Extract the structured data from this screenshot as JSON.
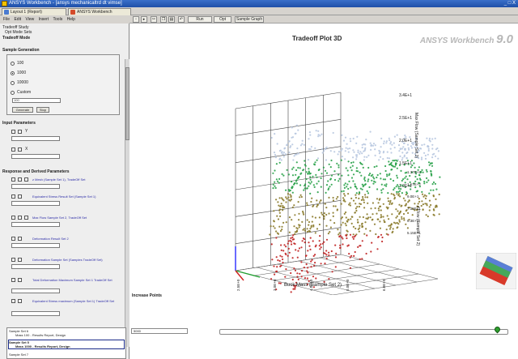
{
  "window": {
    "title": "ANSYS Workbench - [ansys mechanicaltrd dt vimse]",
    "controls": "_ □ X"
  },
  "tabs": [
    {
      "label": "Layout 1 (Report)",
      "color": "#4a7bd0"
    },
    {
      "label": "ANSYS Workbench",
      "color": "#d44b2a"
    }
  ],
  "menu": [
    "File",
    "Edit",
    "View",
    "Insert",
    "Tools",
    "Help"
  ],
  "toolbar": {
    "items": [
      "Run",
      "Opt",
      "Sample Graph"
    ]
  },
  "left": {
    "breadcrumb": [
      "Tradeoff Study",
      "Opt Mode Sets"
    ],
    "heading": "Tradeoff Mode",
    "sample_generation": {
      "title": "Sample Generation",
      "options": [
        "100",
        "1000",
        "10000",
        "Custom"
      ],
      "selected": 1,
      "custom_value": "100",
      "buttons": [
        "Generate",
        "Stop"
      ]
    },
    "input_params": {
      "title": "Input Parameters",
      "items": [
        {
          "label": "Y"
        },
        {
          "label": "X"
        }
      ]
    },
    "response": {
      "title": "Response and Derived Parameters",
      "items": [
        "z Mesh (Sample Set 1), TradeOff Set",
        "Equivalent Stress Result Set (Sample Set 1)",
        "Max Flow Sample Set 2, TradeOff Set",
        "Deformation Result Set 2",
        "Deformation Sample Set (Samples TradeOff Set)",
        "Total Deformation Maximum Sample Set 1 TradeOff Set",
        "Equivalent Stress maximum (Sample Set 1) TradeOff Set"
      ]
    }
  },
  "results": [
    {
      "name": "Sample Set 6",
      "detail": "Mass 100 - Results Report, Design"
    },
    {
      "name": "Sample Set 5",
      "detail": "Mass 1000 - Results Report, Design"
    },
    {
      "name": "Sample Set 7",
      "detail": ""
    }
  ],
  "plot": {
    "title": "Tradeoff Plot 3D",
    "brand": "ANSYS Workbench",
    "version": "9.0",
    "increase_points_label": "Increase Points",
    "points_value": "5000",
    "slider_fraction": 0.97,
    "x_axis_label": "Buck Mass (Sample Set 2)",
    "y_axis_label": "z Flow (Sample Set 2)",
    "z_axis_label": "Max Flow (Sample Set 2)"
  },
  "chart_data": {
    "type": "scatter",
    "title": "Tradeoff Plot 3D",
    "xlabel": "Buck Mass (Sample Set 2)",
    "ylabel": "z Flow (Sample Set 2)",
    "zlabel": "Max Flow (Sample Set 2)",
    "x_ticks": [
      "2.5E+0",
      "3.0E+0",
      "4.0E+0",
      "5.0E+0",
      "6.0E+0"
    ],
    "y_ticks": [
      "1.37E+2",
      "1.17E+2",
      "9.0E+1",
      "7.35E+1",
      "6.3E+1",
      "5.15E+1"
    ],
    "z_ticks": [
      "3.4E+1",
      "2.5E+1",
      "2.0E+1",
      "1.5E+1",
      "1.0E+1"
    ],
    "colors": {
      "high": "#c02020",
      "mid": "#2aa24a",
      "low": "#b8c8e0"
    }
  }
}
